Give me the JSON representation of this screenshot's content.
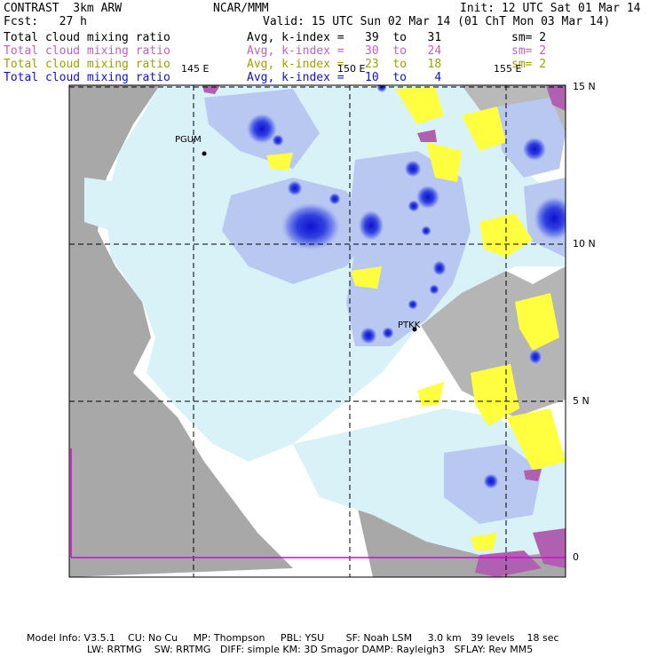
{
  "header": {
    "left1": "CONTRAST  3km ARW",
    "left2": "Fcst:   27 h",
    "center1": "NCAR/MMM",
    "init": "Init: 12 UTC Sat 01 Mar 14",
    "valid": "Valid: 15 UTC Sun 02 Mar 14 (01 ChT Mon 03 Mar 14)"
  },
  "fields": [
    {
      "name": "Total cloud mixing ratio",
      "avg": "Avg, k-index =   39  to   31",
      "sm": "sm= 2",
      "color": "#000000"
    },
    {
      "name": "Total cloud mixing ratio",
      "avg": "Avg, k-index =   30  to   24",
      "sm": "sm= 2",
      "color": "#c060c0"
    },
    {
      "name": "Total cloud mixing ratio",
      "avg": "Avg, k-index =   23  to   18",
      "sm": "sm= 2",
      "color": "#a0a000"
    },
    {
      "name": "Total cloud mixing ratio",
      "avg": "Avg, k-index =   10  to    4",
      "sm": "",
      "color": "#1010e0"
    }
  ],
  "map": {
    "lon_labels": [
      "145 E",
      "150 E",
      "155 E"
    ],
    "lat_labels": [
      "15 N",
      "10 N",
      "5 N",
      "0"
    ],
    "stations": [
      "PGUM",
      "PTKK"
    ],
    "colors": {
      "land": "#a8a8a8",
      "cloud_light": "#d8f2f8",
      "cloud_mid": "#b8c8f0",
      "cloud_dark": "#5060e0",
      "cloud_core": "#1010d0",
      "mid_level": "#ffff40",
      "high_level": "#b060b0"
    }
  },
  "footer": {
    "line1": "Model Info: V3.5.1    CU: No Cu     MP: Thompson     PBL: YSU       SF: Noah LSM     3.0 km   39 levels    18 sec",
    "line2": "LW: RRTMG    SW: RRTMG   DIFF: simple KM: 3D Smagor DAMP: Rayleigh3   SFLAY: Rev MM5"
  }
}
